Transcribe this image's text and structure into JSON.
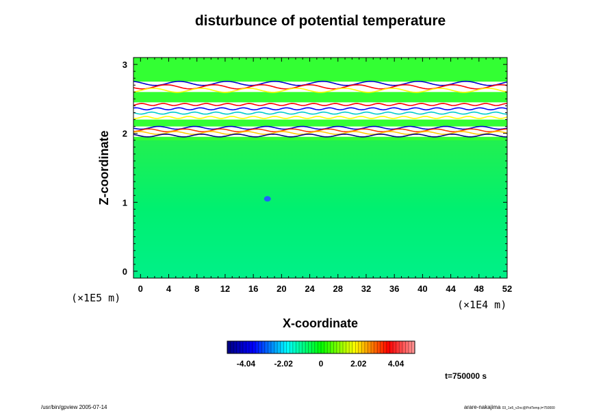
{
  "chart_data": {
    "type": "heatmap",
    "title": "disturbunce of potential temperature",
    "xlabel": "X-coordinate",
    "ylabel": "Z-coordinate",
    "x_unit": "(×1E4 m)",
    "y_unit": "(×1E5 m)",
    "x_ticks": [
      "0",
      "4",
      "8",
      "12",
      "16",
      "20",
      "24",
      "28",
      "32",
      "36",
      "40",
      "44",
      "48",
      "52"
    ],
    "y_ticks": [
      "0",
      "1",
      "2",
      "3"
    ],
    "xlim": [
      -1,
      52
    ],
    "ylim": [
      -0.1,
      3.1
    ],
    "colorbar": {
      "ticks": [
        "-4.04",
        "-2.02",
        "0",
        "2.02",
        "4.04"
      ],
      "range": [
        -5.05,
        5.05
      ],
      "palette": [
        "#000080",
        "#0000ff",
        "#00ffff",
        "#00ff00",
        "#ffff00",
        "#ff0000",
        "#ff9999"
      ]
    },
    "background_field_value": 0.6,
    "features": [
      {
        "z_range": [
          0,
          1.9
        ],
        "value": 0.7,
        "description": "near-neutral lower layer"
      },
      {
        "x": 18,
        "z": 1.05,
        "value": -2.5,
        "description": "small negative anomaly"
      },
      {
        "z_range": [
          1.95,
          2.1
        ],
        "description": "strong positive/negative bands"
      },
      {
        "z_range": [
          2.2,
          2.45
        ],
        "description": "thin layered positive/negative bands"
      },
      {
        "z_range": [
          2.6,
          2.75
        ],
        "description": "wave-like disturbance"
      }
    ],
    "grid": false
  },
  "time_label": "t=750000 s",
  "footer_left": "/usr/bin/gpview 2005-07-14",
  "footer_right_main": "arare-nakajima",
  "footer_right_sub": "03_1e5_v2nc@PotTemp,t=750000"
}
